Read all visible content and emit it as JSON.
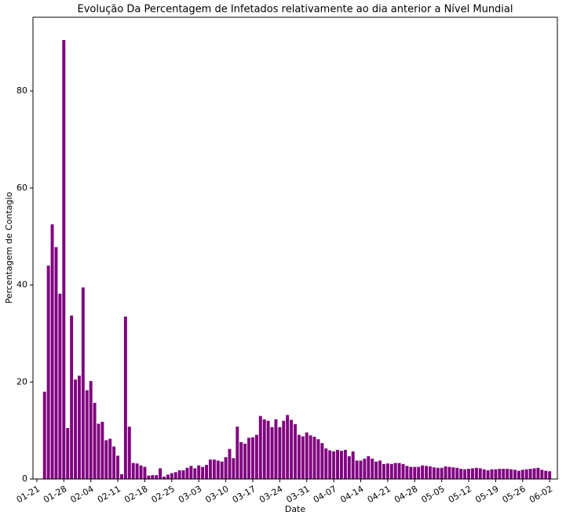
{
  "chart_data": {
    "type": "bar",
    "title": "Evolução Da Percentagem de Infetados relativamente ao dia anterior a Nível Mundial",
    "xlabel": "Date",
    "ylabel": "Percentagem de Contagio",
    "color": "#800080",
    "x": [
      "01-23",
      "01-24",
      "01-25",
      "01-26",
      "01-27",
      "01-28",
      "01-29",
      "01-30",
      "01-31",
      "02-01",
      "02-02",
      "02-03",
      "02-04",
      "02-05",
      "02-06",
      "02-07",
      "02-08",
      "02-09",
      "02-10",
      "02-11",
      "02-12",
      "02-13",
      "02-14",
      "02-15",
      "02-16",
      "02-17",
      "02-18",
      "02-19",
      "02-20",
      "02-21",
      "02-22",
      "02-23",
      "02-24",
      "02-25",
      "02-26",
      "02-27",
      "02-28",
      "02-29",
      "03-01",
      "03-02",
      "03-03",
      "03-04",
      "03-05",
      "03-06",
      "03-07",
      "03-08",
      "03-09",
      "03-10",
      "03-11",
      "03-12",
      "03-13",
      "03-14",
      "03-15",
      "03-16",
      "03-17",
      "03-18",
      "03-19",
      "03-20",
      "03-21",
      "03-22",
      "03-23",
      "03-24",
      "03-25",
      "03-26",
      "03-27",
      "03-28",
      "03-29",
      "03-30",
      "03-31",
      "04-01",
      "04-02",
      "04-03",
      "04-04",
      "04-05",
      "04-06",
      "04-07",
      "04-08",
      "04-09",
      "04-10",
      "04-11",
      "04-12",
      "04-13",
      "04-14",
      "04-15",
      "04-16",
      "04-17",
      "04-18",
      "04-19",
      "04-20",
      "04-21",
      "04-22",
      "04-23",
      "04-24",
      "04-25",
      "04-26",
      "04-27",
      "04-28",
      "04-29",
      "04-30",
      "05-01",
      "05-02",
      "05-03",
      "05-04",
      "05-05",
      "05-06",
      "05-07",
      "05-08",
      "05-09",
      "05-10",
      "05-11",
      "05-12",
      "05-13",
      "05-14",
      "05-15",
      "05-16",
      "05-17",
      "05-18",
      "05-19",
      "05-20",
      "05-21",
      "05-22",
      "05-23",
      "05-24",
      "05-25",
      "05-26",
      "05-27",
      "05-28",
      "05-29",
      "05-30",
      "05-31",
      "06-01",
      "06-02"
    ],
    "values": [
      18,
      44,
      52.5,
      47.8,
      38.2,
      90.5,
      10.5,
      33.7,
      20.5,
      21.3,
      39.5,
      18.3,
      20.2,
      15.7,
      11.4,
      11.8,
      8,
      8.3,
      6.7,
      4.8,
      1,
      33.5,
      10.8,
      3.3,
      3.2,
      2.8,
      2.5,
      0.7,
      0.8,
      0.8,
      2.2,
      0.5,
      0.9,
      1.2,
      1.4,
      1.8,
      1.8,
      2.3,
      2.7,
      2.2,
      2.8,
      2.5,
      2.9,
      4,
      4,
      3.8,
      3.6,
      4.5,
      6.2,
      4.3,
      10.8,
      7.6,
      7.3,
      8.5,
      8.6,
      9.1,
      13,
      12.3,
      12,
      10.7,
      12.3,
      10.7,
      12,
      13.2,
      12.2,
      11.3,
      9.1,
      8.8,
      9.6,
      9,
      8.7,
      8.2,
      7.4,
      6.3,
      5.9,
      5.7,
      6,
      5.8,
      6,
      4.7,
      5.7,
      3.8,
      3.8,
      4.2,
      4.7,
      4.2,
      3.6,
      3.8,
      3.1,
      3.2,
      3.1,
      3.3,
      3.3,
      3.1,
      2.7,
      2.5,
      2.5,
      2.5,
      2.8,
      2.7,
      2.6,
      2.4,
      2.3,
      2.3,
      2.6,
      2.5,
      2.4,
      2.3,
      2.1,
      2,
      2.1,
      2.2,
      2.3,
      2.2,
      2,
      1.8,
      2,
      2,
      2.1,
      2.1,
      2.1,
      2,
      1.9,
      1.7,
      1.9,
      2,
      2.1,
      2.2,
      2.3,
      1.9,
      1.7,
      1.6
    ],
    "xlim": [
      "01-20",
      "06-04"
    ],
    "xticks": [
      "01-21",
      "01-28",
      "02-04",
      "02-11",
      "02-18",
      "02-25",
      "03-03",
      "03-10",
      "03-17",
      "03-24",
      "03-31",
      "04-07",
      "04-14",
      "04-21",
      "04-28",
      "05-05",
      "05-12",
      "05-19",
      "05-26",
      "06-02"
    ],
    "ylim": [
      0,
      95.2
    ],
    "yticks": [
      0,
      20,
      40,
      60,
      80
    ]
  }
}
